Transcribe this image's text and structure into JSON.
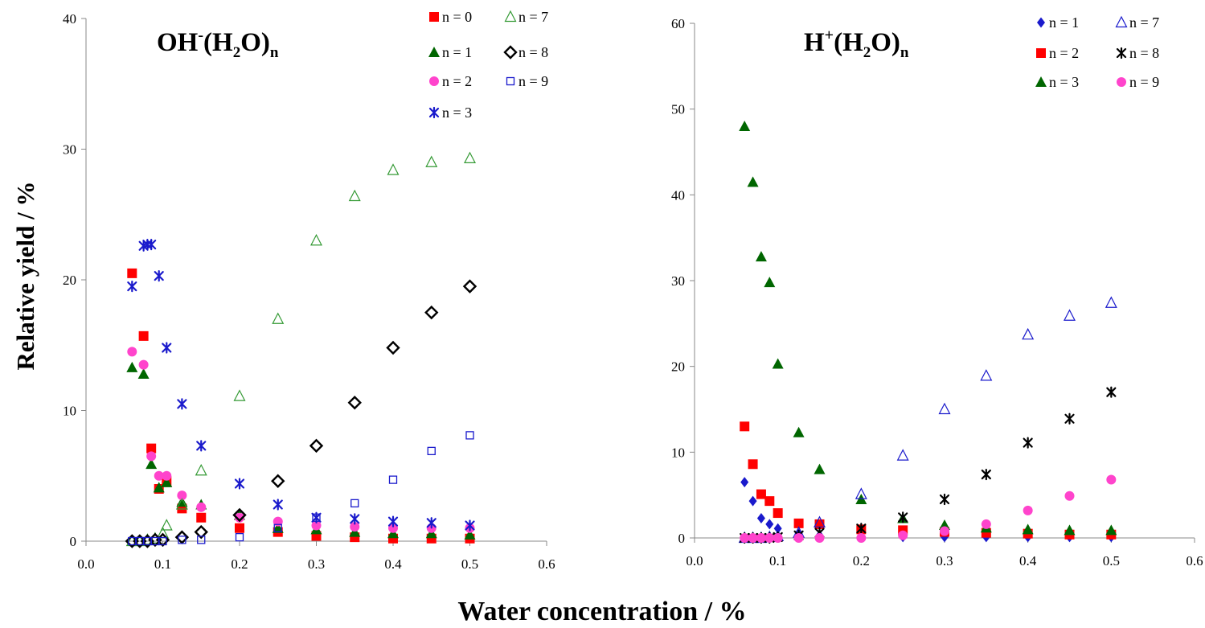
{
  "figure": {
    "ylabel": "Relative yield / %",
    "xlabel": "Water concentration / %"
  },
  "chart_data": [
    {
      "type": "scatter",
      "title": {
        "base": "OH",
        "sup": "-",
        "mid": "(H",
        "sub1": "2",
        "end": "O)",
        "sub2": "n"
      },
      "xlim": [
        0,
        0.6
      ],
      "ylim": [
        0,
        40
      ],
      "xticks": [
        "0.0",
        "0.1",
        "0.2",
        "0.3",
        "0.4",
        "0.5",
        "0.6"
      ],
      "yticks": [
        "0",
        "10",
        "20",
        "30",
        "40"
      ],
      "legend_position": "top-right",
      "series": [
        {
          "name": "n = 0",
          "marker": "square-filled",
          "color": "#ff0000",
          "x": [
            0.06,
            0.075,
            0.085,
            0.095,
            0.105,
            0.125,
            0.15,
            0.2,
            0.25,
            0.3,
            0.35,
            0.4,
            0.45,
            0.5
          ],
          "y": [
            20.5,
            15.7,
            7.1,
            4.0,
            4.6,
            2.5,
            1.8,
            1.0,
            0.7,
            0.4,
            0.3,
            0.2,
            0.2,
            0.2
          ]
        },
        {
          "name": "n = 1",
          "marker": "triangle-filled",
          "color": "#006600",
          "x": [
            0.06,
            0.075,
            0.085,
            0.095,
            0.105,
            0.125,
            0.15,
            0.2,
            0.25,
            0.3,
            0.35,
            0.4,
            0.45,
            0.5
          ],
          "y": [
            13.3,
            12.8,
            5.9,
            4.1,
            4.5,
            3.0,
            2.8,
            2.0,
            1.0,
            0.9,
            0.7,
            0.6,
            0.6,
            0.5
          ]
        },
        {
          "name": "n = 2",
          "marker": "circle-filled",
          "color": "#ff44cc",
          "x": [
            0.06,
            0.075,
            0.085,
            0.095,
            0.105,
            0.125,
            0.15,
            0.2,
            0.25,
            0.3,
            0.35,
            0.4,
            0.45,
            0.5
          ],
          "y": [
            14.5,
            13.5,
            6.5,
            5.0,
            5.0,
            3.5,
            2.6,
            1.8,
            1.5,
            1.2,
            1.1,
            1.0,
            1.0,
            1.0
          ]
        },
        {
          "name": "n = 3",
          "marker": "asterisk",
          "color": "#1a1acc",
          "x": [
            0.06,
            0.075,
            0.08,
            0.085,
            0.095,
            0.105,
            0.125,
            0.15,
            0.2,
            0.25,
            0.3,
            0.35,
            0.4,
            0.45,
            0.5
          ],
          "y": [
            19.5,
            22.6,
            22.7,
            22.7,
            20.3,
            14.8,
            10.5,
            7.3,
            4.4,
            2.8,
            1.8,
            1.7,
            1.5,
            1.4,
            1.2
          ]
        },
        {
          "name": "n = 7",
          "marker": "triangle-open",
          "color": "#339933",
          "x": [
            0.06,
            0.07,
            0.08,
            0.09,
            0.1,
            0.105,
            0.125,
            0.15,
            0.2,
            0.25,
            0.3,
            0.35,
            0.4,
            0.45,
            0.5
          ],
          "y": [
            0.0,
            0.0,
            0.1,
            0.2,
            0.6,
            1.2,
            2.8,
            5.4,
            11.1,
            17.0,
            23.0,
            26.4,
            28.4,
            29.0,
            29.3
          ]
        },
        {
          "name": "n = 8",
          "marker": "diamond-open",
          "color": "#000000",
          "x": [
            0.06,
            0.07,
            0.08,
            0.09,
            0.1,
            0.125,
            0.15,
            0.2,
            0.25,
            0.3,
            0.35,
            0.4,
            0.45,
            0.5
          ],
          "y": [
            0.0,
            0.0,
            0.0,
            0.1,
            0.1,
            0.3,
            0.7,
            2.0,
            4.6,
            7.3,
            10.6,
            14.8,
            17.5,
            19.5
          ]
        },
        {
          "name": "n = 9",
          "marker": "square-open",
          "color": "#1a1acc",
          "x": [
            0.06,
            0.07,
            0.08,
            0.09,
            0.1,
            0.125,
            0.15,
            0.2,
            0.25,
            0.3,
            0.35,
            0.4,
            0.45,
            0.5
          ],
          "y": [
            0.0,
            0.0,
            0.0,
            0.0,
            0.0,
            0.1,
            0.1,
            0.3,
            1.0,
            1.8,
            2.9,
            4.7,
            6.9,
            8.1
          ]
        }
      ]
    },
    {
      "type": "scatter",
      "title": {
        "base": "H",
        "sup": "+",
        "mid": "(H",
        "sub1": "2",
        "end": "O)",
        "sub2": "n"
      },
      "xlim": [
        0,
        0.6
      ],
      "ylim": [
        0,
        60
      ],
      "xticks": [
        "0.0",
        "0.1",
        "0.2",
        "0.3",
        "0.4",
        "0.5",
        "0.6"
      ],
      "yticks": [
        "0",
        "10",
        "20",
        "30",
        "40",
        "50",
        "60"
      ],
      "legend_position": "top-right",
      "series": [
        {
          "name": "n = 1",
          "marker": "diamond-filled",
          "color": "#1a1acc",
          "x": [
            0.06,
            0.07,
            0.08,
            0.09,
            0.1,
            0.125,
            0.15,
            0.2,
            0.25,
            0.3,
            0.35,
            0.4,
            0.45,
            0.5
          ],
          "y": [
            6.5,
            4.3,
            2.3,
            1.6,
            1.1,
            0.5,
            0.3,
            0.2,
            0.1,
            0.1,
            0.1,
            0.1,
            0.1,
            0.1
          ]
        },
        {
          "name": "n = 2",
          "marker": "square-filled",
          "color": "#ff0000",
          "x": [
            0.06,
            0.07,
            0.08,
            0.09,
            0.1,
            0.125,
            0.15,
            0.2,
            0.25,
            0.3,
            0.35,
            0.4,
            0.45,
            0.5
          ],
          "y": [
            13.0,
            8.6,
            5.1,
            4.3,
            2.9,
            1.7,
            1.6,
            1.0,
            0.9,
            0.7,
            0.6,
            0.5,
            0.4,
            0.4
          ]
        },
        {
          "name": "n = 3",
          "marker": "triangle-filled",
          "color": "#006600",
          "x": [
            0.06,
            0.07,
            0.08,
            0.09,
            0.1,
            0.125,
            0.15,
            0.2,
            0.25,
            0.3,
            0.35,
            0.4,
            0.45,
            0.5
          ],
          "y": [
            48.0,
            41.5,
            32.8,
            29.8,
            20.3,
            12.3,
            8.0,
            4.5,
            2.3,
            1.5,
            1.2,
            1.0,
            0.9,
            0.9
          ]
        },
        {
          "name": "n = 7",
          "marker": "triangle-open",
          "color": "#1a1acc",
          "x": [
            0.06,
            0.07,
            0.08,
            0.09,
            0.1,
            0.125,
            0.15,
            0.2,
            0.25,
            0.3,
            0.35,
            0.4,
            0.45,
            0.5
          ],
          "y": [
            0.0,
            0.0,
            0.0,
            0.1,
            0.2,
            0.6,
            1.8,
            5.1,
            9.6,
            15.0,
            18.9,
            23.7,
            25.9,
            27.4
          ]
        },
        {
          "name": "n = 8",
          "marker": "asterisk",
          "color": "#000000",
          "x": [
            0.06,
            0.07,
            0.08,
            0.09,
            0.1,
            0.125,
            0.15,
            0.2,
            0.25,
            0.3,
            0.35,
            0.4,
            0.45,
            0.5
          ],
          "y": [
            0.0,
            0.0,
            0.0,
            0.0,
            0.1,
            0.3,
            0.6,
            1.1,
            2.4,
            4.5,
            7.4,
            11.1,
            13.9,
            17.0
          ]
        },
        {
          "name": "n = 9",
          "marker": "circle-filled",
          "color": "#ff44cc",
          "x": [
            0.06,
            0.07,
            0.08,
            0.09,
            0.1,
            0.125,
            0.15,
            0.2,
            0.25,
            0.3,
            0.35,
            0.4,
            0.45,
            0.5
          ],
          "y": [
            0.0,
            0.0,
            0.0,
            0.0,
            0.0,
            0.0,
            0.0,
            0.0,
            0.3,
            0.8,
            1.6,
            3.2,
            4.9,
            6.8
          ]
        }
      ]
    }
  ]
}
